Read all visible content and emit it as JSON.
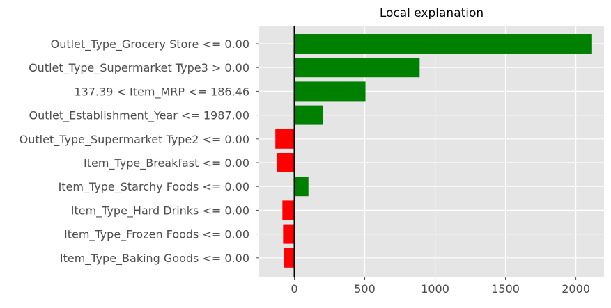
{
  "chart_data": {
    "type": "bar",
    "orientation": "horizontal",
    "title": "Local explanation",
    "xlabel": "",
    "ylabel": "",
    "xlim": [
      -250,
      2200
    ],
    "xticks": [
      0,
      500,
      1000,
      1500,
      2000
    ],
    "xtick_labels": [
      "0",
      "500",
      "1000",
      "1500",
      "2000"
    ],
    "grid": true,
    "categories": [
      "Outlet_Type_Grocery Store <= 0.00",
      "Outlet_Type_Supermarket Type3 > 0.00",
      "137.39 < Item_MRP <= 186.46",
      "Outlet_Establishment_Year <= 1987.00",
      "Outlet_Type_Supermarket Type2 <= 0.00",
      "Item_Type_Breakfast <= 0.00",
      "Item_Type_Starchy Foods <= 0.00",
      "Item_Type_Hard Drinks <= 0.00",
      "Item_Type_Frozen Foods <= 0.00",
      "Item_Type_Baking Goods <= 0.00"
    ],
    "values": [
      2115,
      890,
      505,
      205,
      -135,
      -125,
      100,
      -85,
      -80,
      -75
    ],
    "colors": {
      "positive": "#008000",
      "negative": "#ff0000",
      "background": "#e5e5e5",
      "grid": "#ffffff",
      "zero_line": "#000000"
    }
  }
}
